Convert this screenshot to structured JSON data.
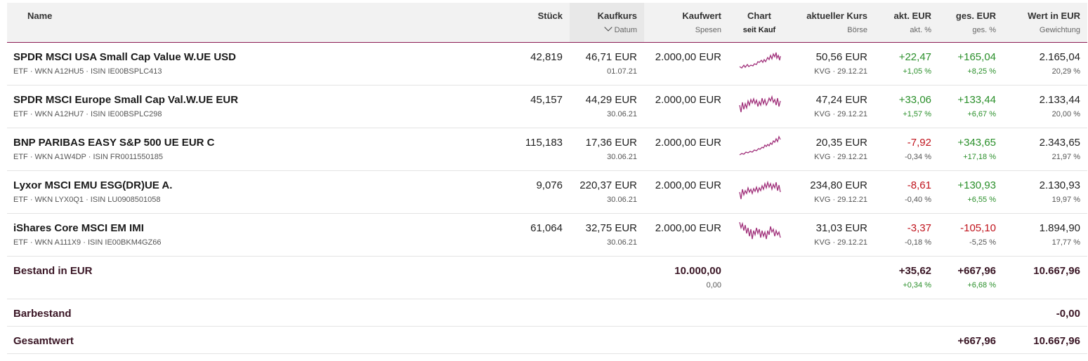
{
  "header": {
    "name": "Name",
    "stueck": "Stück",
    "kaufkurs": "Kaufkurs",
    "kaufkurs_sub": "Datum",
    "kaufwert": "Kaufwert",
    "kaufwert_sub": "Spesen",
    "chart": "Chart",
    "chart_sub": "seit Kauf",
    "kurs": "aktueller Kurs",
    "kurs_sub": "Börse",
    "akt": "akt. EUR",
    "akt_sub": "akt. %",
    "ges": "ges. EUR",
    "ges_sub": "ges. %",
    "wert": "Wert in EUR",
    "wert_sub": "Gewichtung"
  },
  "colors": {
    "accent": "#8a1a53",
    "positive": "#2a8f2a",
    "negative": "#c0131c",
    "sparkline": "#a0307a"
  },
  "positions": [
    {
      "name": "SPDR MSCI USA Small Cap Value W.UE USD",
      "meta": "ETF · WKN A12HU5 · ISIN IE00BSPLC413",
      "stueck": "42,819",
      "kaufkurs": "46,71 EUR",
      "datum": "01.07.21",
      "kaufwert": "2.000,00 EUR",
      "kurs": "50,56 EUR",
      "boerse": "KVG · 29.12.21",
      "akt_eur": "+22,47",
      "akt_pct": "+1,05 %",
      "akt_sign": "pos",
      "ges_eur": "+165,04",
      "ges_pct": "+8,25 %",
      "ges_sign": "pos",
      "wert": "2.165,04",
      "gewichtung": "20,29 %"
    },
    {
      "name": "SPDR MSCI Europe Small Cap Val.W.UE EUR",
      "meta": "ETF · WKN A12HU7 · ISIN IE00BSPLC298",
      "stueck": "45,157",
      "kaufkurs": "44,29 EUR",
      "datum": "30.06.21",
      "kaufwert": "2.000,00 EUR",
      "kurs": "47,24 EUR",
      "boerse": "KVG · 29.12.21",
      "akt_eur": "+33,06",
      "akt_pct": "+1,57 %",
      "akt_sign": "pos",
      "ges_eur": "+133,44",
      "ges_pct": "+6,67 %",
      "ges_sign": "pos",
      "wert": "2.133,44",
      "gewichtung": "20,00 %"
    },
    {
      "name": "BNP PARIBAS EASY S&P 500 UE EUR C",
      "meta": "ETF · WKN A1W4DP · ISIN FR0011550185",
      "stueck": "115,183",
      "kaufkurs": "17,36 EUR",
      "datum": "30.06.21",
      "kaufwert": "2.000,00 EUR",
      "kurs": "20,35 EUR",
      "boerse": "KVG · 29.12.21",
      "akt_eur": "-7,92",
      "akt_pct": "-0,34 %",
      "akt_sign": "neg",
      "ges_eur": "+343,65",
      "ges_pct": "+17,18 %",
      "ges_sign": "pos",
      "wert": "2.343,65",
      "gewichtung": "21,97 %"
    },
    {
      "name": "Lyxor MSCI EMU ESG(DR)UE A.",
      "meta": "ETF · WKN LYX0Q1 · ISIN LU0908501058",
      "stueck": "9,076",
      "kaufkurs": "220,37 EUR",
      "datum": "30.06.21",
      "kaufwert": "2.000,00 EUR",
      "kurs": "234,80 EUR",
      "boerse": "KVG · 29.12.21",
      "akt_eur": "-8,61",
      "akt_pct": "-0,40 %",
      "akt_sign": "neg",
      "ges_eur": "+130,93",
      "ges_pct": "+6,55 %",
      "ges_sign": "pos",
      "wert": "2.130,93",
      "gewichtung": "19,97 %"
    },
    {
      "name": "iShares Core MSCI EM IMI",
      "meta": "ETF · WKN A111X9 · ISIN IE00BKM4GZ66",
      "stueck": "61,064",
      "kaufkurs": "32,75 EUR",
      "datum": "30.06.21",
      "kaufwert": "2.000,00 EUR",
      "kurs": "31,03 EUR",
      "boerse": "KVG · 29.12.21",
      "akt_eur": "-3,37",
      "akt_pct": "-0,18 %",
      "akt_sign": "neg",
      "ges_eur": "-105,10",
      "ges_pct": "-5,25 %",
      "ges_sign": "neg",
      "wert": "1.894,90",
      "gewichtung": "17,77 %"
    }
  ],
  "bestand": {
    "label": "Bestand in EUR",
    "kaufwert": "10.000,00",
    "spesen": "0,00",
    "akt_eur": "+35,62",
    "akt_pct": "+0,34 %",
    "ges_eur": "+667,96",
    "ges_pct": "+6,68 %",
    "wert": "10.667,96"
  },
  "barbestand": {
    "label": "Barbestand",
    "wert": "-0,00"
  },
  "gesamtwert": {
    "label": "Gesamtwert",
    "ges_eur": "+667,96",
    "wert": "10.667,96"
  }
}
